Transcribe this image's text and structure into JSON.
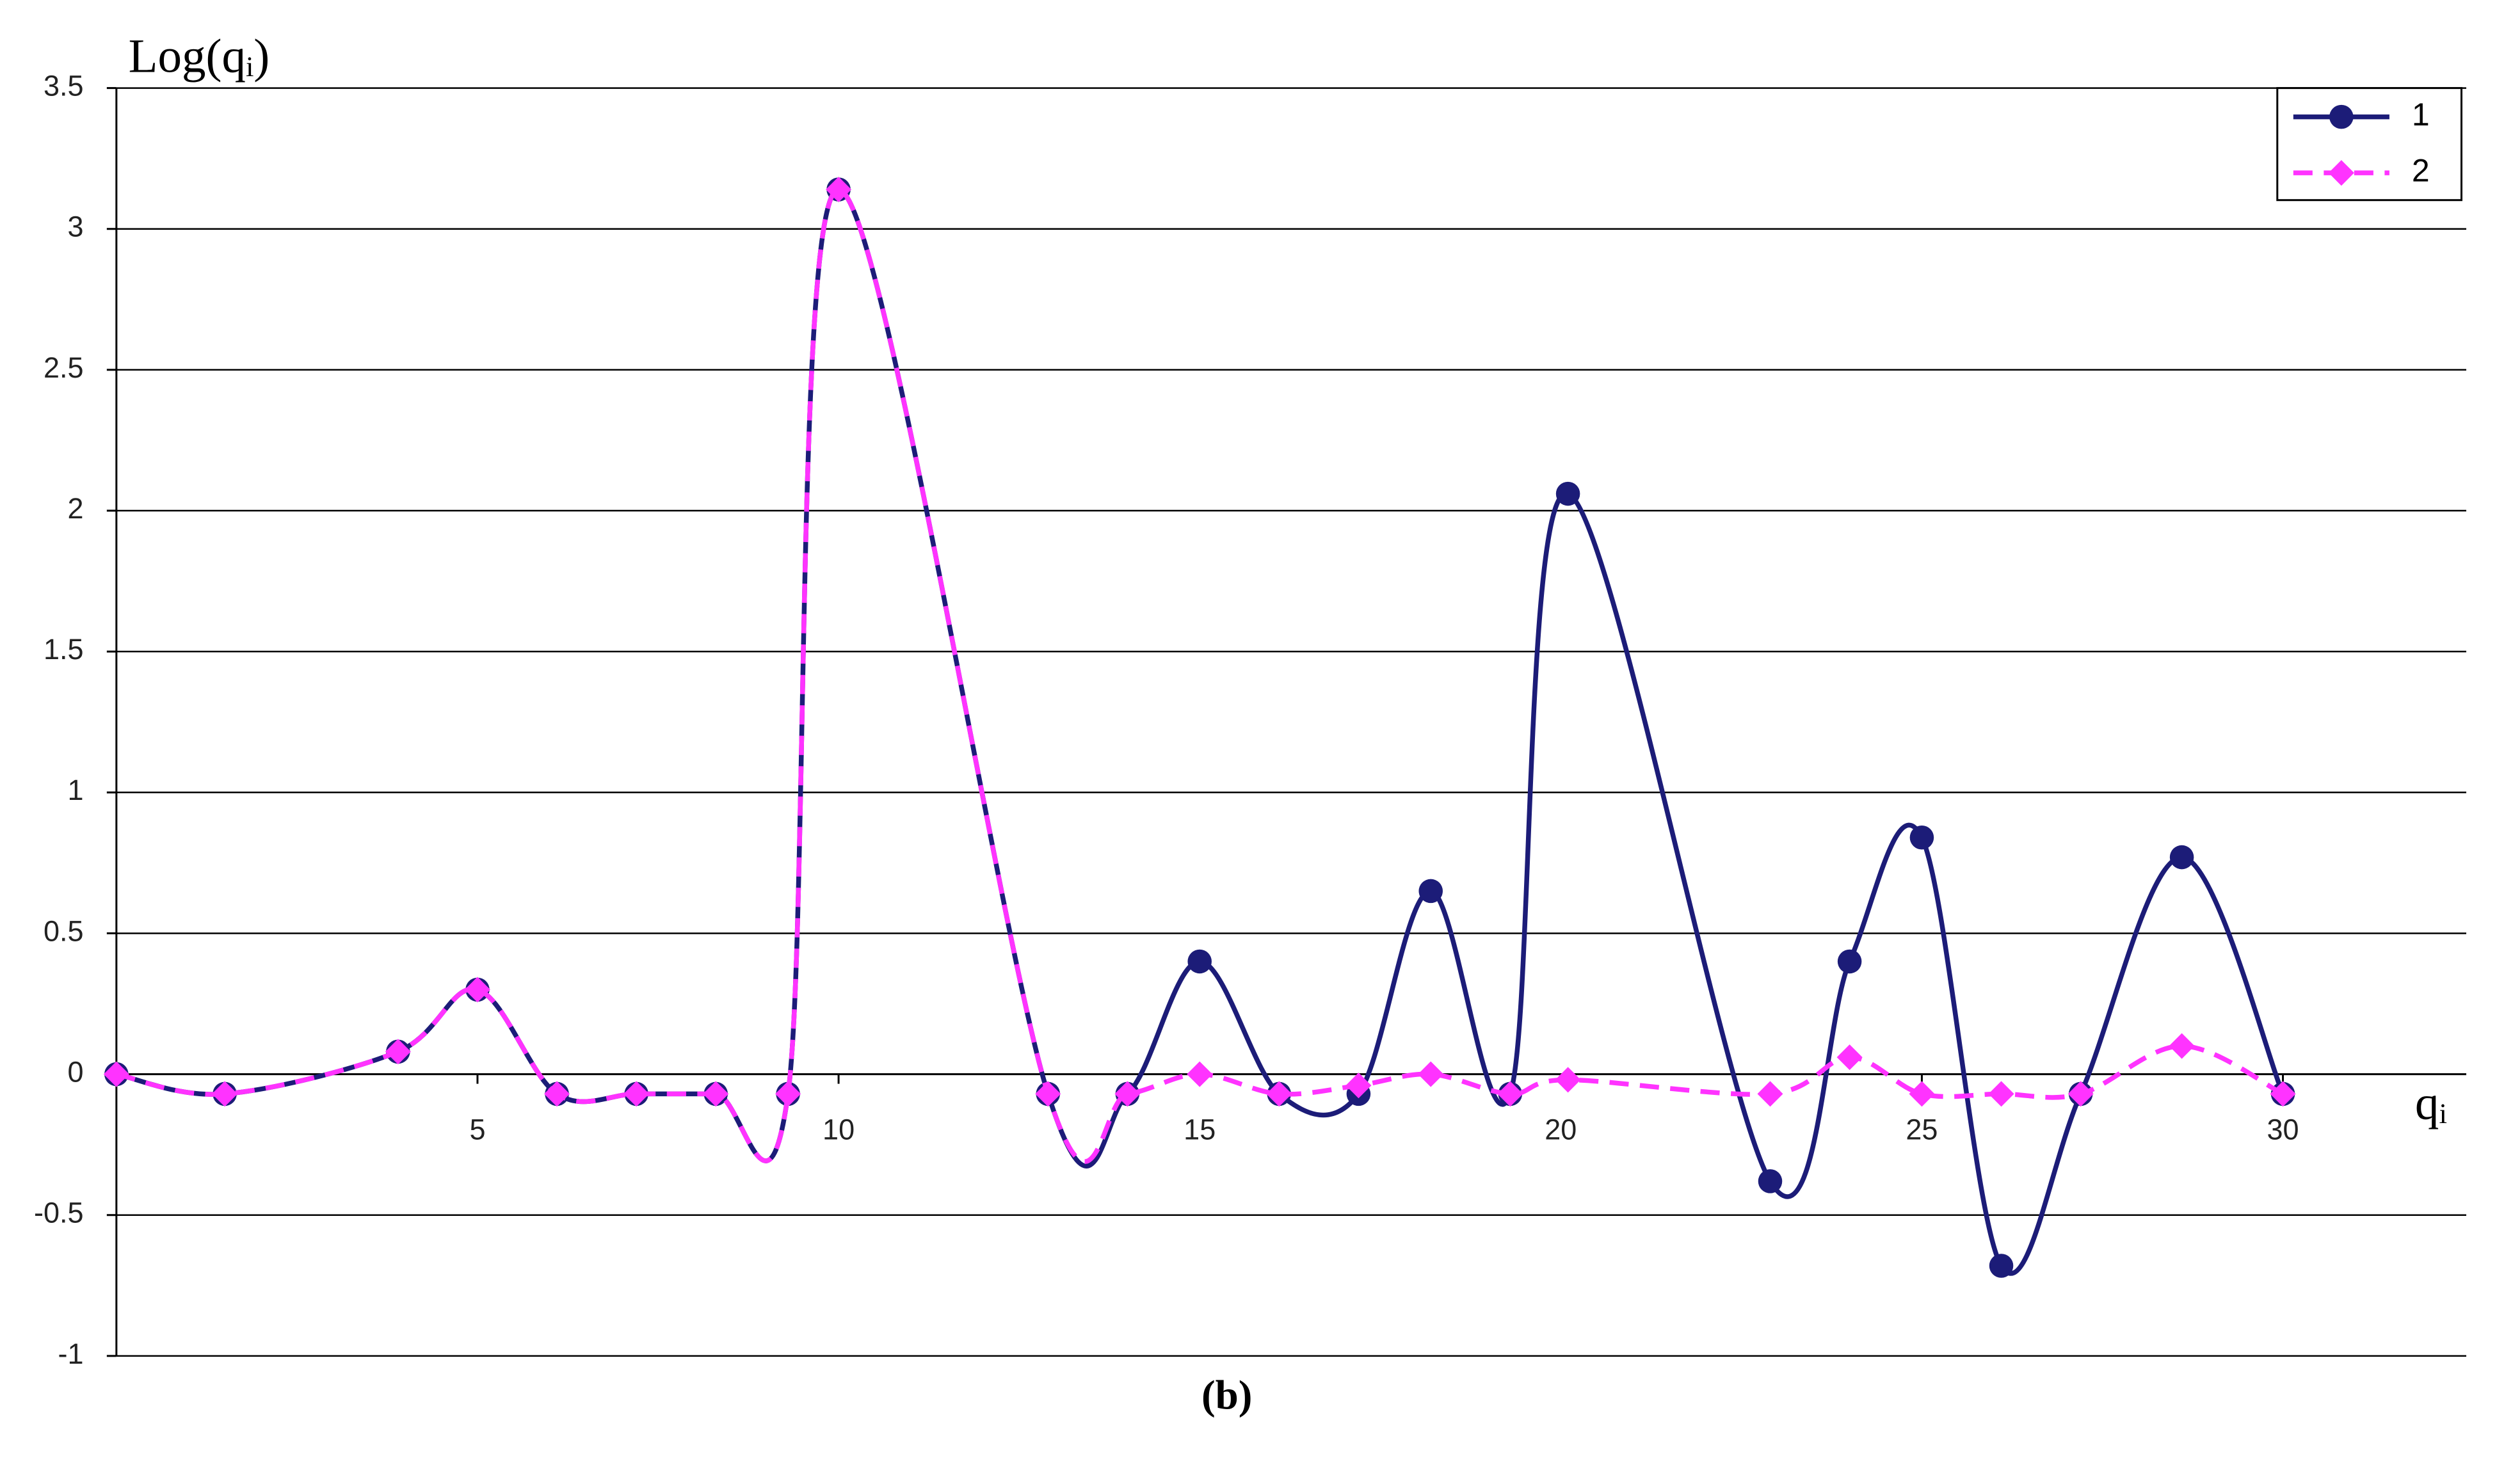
{
  "chart_data": {
    "type": "line",
    "y_label": "Log(qᵢ)",
    "x_label": "qᵢ",
    "caption": "(b)",
    "xlim": [
      0,
      32
    ],
    "xticks": [
      5,
      10,
      15,
      20,
      25,
      30
    ],
    "ylim": [
      -1,
      3.5
    ],
    "yticks": [
      3.5,
      3,
      2.5,
      2,
      1.5,
      1,
      0.5,
      0,
      -0.5,
      -1
    ],
    "grid": true,
    "legend": "upper right",
    "x": [
      0,
      1.5,
      3.9,
      5,
      6.1,
      7.2,
      8.3,
      9.3,
      10,
      12.9,
      14,
      15,
      16.1,
      17.2,
      18.2,
      19.3,
      20.1,
      22.9,
      24,
      25,
      26.1,
      27.2,
      28.6,
      30
    ],
    "series": [
      {
        "name": "1",
        "color": "#1c1c78",
        "marker": "circle",
        "dashed": false,
        "values": [
          0,
          -0.07,
          0.08,
          0.3,
          -0.07,
          -0.07,
          -0.07,
          -0.07,
          3.14,
          -0.07,
          -0.07,
          0.4,
          -0.07,
          -0.07,
          0.65,
          -0.07,
          2.06,
          -0.38,
          0.4,
          0.84,
          -0.68,
          -0.07,
          0.77,
          -0.07
        ]
      },
      {
        "name": "2",
        "color": "#ff33ff",
        "marker": "diamond",
        "dashed": true,
        "values": [
          0,
          -0.07,
          0.08,
          0.3,
          -0.07,
          -0.07,
          -0.07,
          -0.07,
          3.14,
          -0.07,
          -0.07,
          0,
          -0.07,
          -0.04,
          0,
          -0.07,
          -0.02,
          -0.07,
          0.06,
          -0.07,
          -0.07,
          -0.07,
          0.1,
          -0.07
        ]
      }
    ]
  }
}
